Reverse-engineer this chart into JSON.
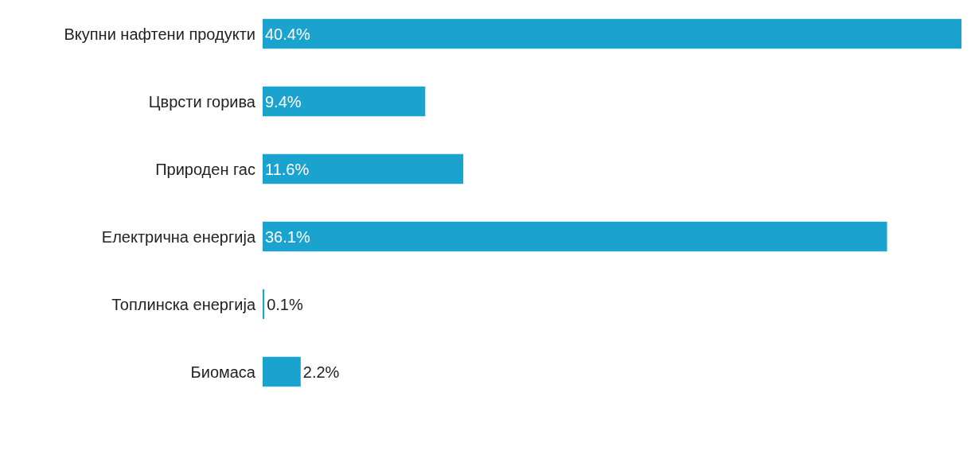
{
  "chart_data": {
    "type": "bar",
    "orientation": "horizontal",
    "categories": [
      "Вкупни нафтени продукти",
      "Цврсти горива",
      "Природен гас",
      "Електрична енергија",
      "Топлинска енергија",
      "Биомаса"
    ],
    "values": [
      40.4,
      9.4,
      11.6,
      36.1,
      0.1,
      2.2
    ],
    "value_labels": [
      "40.4%",
      "9.4%",
      "11.6%",
      "36.1%",
      "0.1%",
      "2.2%"
    ],
    "color": "#1aa3cf"
  }
}
